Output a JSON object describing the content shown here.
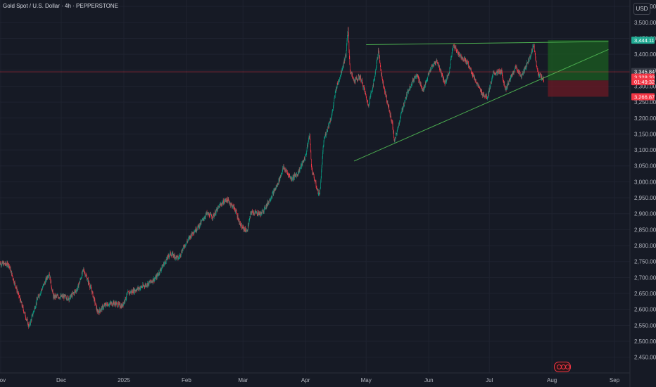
{
  "header": {
    "title": "Gold Spot / U.S. Dollar · 4h · PEPPERSTONE",
    "currency_button": "USD"
  },
  "colors": {
    "background": "#161a25",
    "grid": "#1f2330",
    "up": "#089981",
    "down": "#f23645",
    "trendline": "#4caf50",
    "profit_zone": "#1b5e20",
    "loss_zone": "#6b1a24",
    "price_line": "#f23645"
  },
  "chart_data": {
    "type": "candlestick",
    "title": "Gold Spot / U.S. Dollar · 4h · PEPPERSTONE",
    "x_axis": {
      "tick_labels": [
        "Nov",
        "Dec",
        "2025",
        "Feb",
        "Mar",
        "Apr",
        "May",
        "Jun",
        "Jul",
        "Aug",
        "Sep"
      ],
      "tick_dates": [
        "2024-11-01",
        "2024-12-01",
        "2025-01-01",
        "2025-02-01",
        "2025-03-01",
        "2025-04-01",
        "2025-05-01",
        "2025-06-01",
        "2025-07-01",
        "2025-08-01",
        "2025-09-01"
      ]
    },
    "y_axis": {
      "range": [
        2450,
        3560
      ],
      "tick_labels": [
        "2,450.00",
        "2,500.00",
        "2,550.00",
        "2,600.00",
        "2,650.00",
        "2,700.00",
        "2,750.00",
        "2,800.00",
        "2,850.00",
        "2,900.00",
        "2,950.00",
        "3,000.00",
        "3,050.00",
        "3,100.00",
        "3,150.00",
        "3,200.00",
        "3,250.00",
        "3,300.00",
        "3,350.00",
        "3,400.00",
        "3,450.00",
        "3,500.00",
        "3,550.00"
      ],
      "tick_values": [
        2450,
        2500,
        2550,
        2600,
        2650,
        2700,
        2750,
        2800,
        2850,
        2900,
        2950,
        3000,
        3050,
        3100,
        3150,
        3200,
        3250,
        3300,
        3350,
        3400,
        3450,
        3500,
        3550
      ]
    },
    "price_path": [
      {
        "date": "2024-10-31",
        "price": 2745
      },
      {
        "date": "2024-11-05",
        "price": 2740
      },
      {
        "date": "2024-11-08",
        "price": 2680
      },
      {
        "date": "2024-11-14",
        "price": 2565
      },
      {
        "date": "2024-11-15",
        "price": 2545
      },
      {
        "date": "2024-11-19",
        "price": 2630
      },
      {
        "date": "2024-11-25",
        "price": 2715
      },
      {
        "date": "2024-11-27",
        "price": 2640
      },
      {
        "date": "2024-12-02",
        "price": 2640
      },
      {
        "date": "2024-12-05",
        "price": 2635
      },
      {
        "date": "2024-12-09",
        "price": 2665
      },
      {
        "date": "2024-12-12",
        "price": 2725
      },
      {
        "date": "2024-12-16",
        "price": 2660
      },
      {
        "date": "2024-12-19",
        "price": 2590
      },
      {
        "date": "2024-12-23",
        "price": 2615
      },
      {
        "date": "2024-12-27",
        "price": 2620
      },
      {
        "date": "2024-12-31",
        "price": 2610
      },
      {
        "date": "2025-01-03",
        "price": 2650
      },
      {
        "date": "2025-01-08",
        "price": 2665
      },
      {
        "date": "2025-01-13",
        "price": 2680
      },
      {
        "date": "2025-01-17",
        "price": 2700
      },
      {
        "date": "2025-01-21",
        "price": 2745
      },
      {
        "date": "2025-01-24",
        "price": 2775
      },
      {
        "date": "2025-01-28",
        "price": 2760
      },
      {
        "date": "2025-01-31",
        "price": 2800
      },
      {
        "date": "2025-02-04",
        "price": 2840
      },
      {
        "date": "2025-02-07",
        "price": 2860
      },
      {
        "date": "2025-02-11",
        "price": 2900
      },
      {
        "date": "2025-02-14",
        "price": 2890
      },
      {
        "date": "2025-02-18",
        "price": 2930
      },
      {
        "date": "2025-02-21",
        "price": 2945
      },
      {
        "date": "2025-02-25",
        "price": 2915
      },
      {
        "date": "2025-02-28",
        "price": 2860
      },
      {
        "date": "2025-03-03",
        "price": 2845
      },
      {
        "date": "2025-03-05",
        "price": 2905
      },
      {
        "date": "2025-03-10",
        "price": 2900
      },
      {
        "date": "2025-03-13",
        "price": 2930
      },
      {
        "date": "2025-03-18",
        "price": 2990
      },
      {
        "date": "2025-03-21",
        "price": 3045
      },
      {
        "date": "2025-03-25",
        "price": 3010
      },
      {
        "date": "2025-03-28",
        "price": 3025
      },
      {
        "date": "2025-04-01",
        "price": 3080
      },
      {
        "date": "2025-04-03",
        "price": 3150
      },
      {
        "date": "2025-04-04",
        "price": 3040
      },
      {
        "date": "2025-04-07",
        "price": 2970
      },
      {
        "date": "2025-04-08",
        "price": 2960
      },
      {
        "date": "2025-04-10",
        "price": 3130
      },
      {
        "date": "2025-04-14",
        "price": 3210
      },
      {
        "date": "2025-04-16",
        "price": 3290
      },
      {
        "date": "2025-04-18",
        "price": 3330
      },
      {
        "date": "2025-04-21",
        "price": 3400
      },
      {
        "date": "2025-04-22",
        "price": 3480
      },
      {
        "date": "2025-04-23",
        "price": 3350
      },
      {
        "date": "2025-04-25",
        "price": 3315
      },
      {
        "date": "2025-04-28",
        "price": 3330
      },
      {
        "date": "2025-04-30",
        "price": 3290
      },
      {
        "date": "2025-05-02",
        "price": 3240
      },
      {
        "date": "2025-05-05",
        "price": 3320
      },
      {
        "date": "2025-05-07",
        "price": 3410
      },
      {
        "date": "2025-05-09",
        "price": 3320
      },
      {
        "date": "2025-05-12",
        "price": 3235
      },
      {
        "date": "2025-05-14",
        "price": 3180
      },
      {
        "date": "2025-05-15",
        "price": 3125
      },
      {
        "date": "2025-05-19",
        "price": 3230
      },
      {
        "date": "2025-05-22",
        "price": 3290
      },
      {
        "date": "2025-05-26",
        "price": 3340
      },
      {
        "date": "2025-05-29",
        "price": 3285
      },
      {
        "date": "2025-06-02",
        "price": 3355
      },
      {
        "date": "2025-06-05",
        "price": 3380
      },
      {
        "date": "2025-06-09",
        "price": 3310
      },
      {
        "date": "2025-06-11",
        "price": 3340
      },
      {
        "date": "2025-06-13",
        "price": 3430
      },
      {
        "date": "2025-06-16",
        "price": 3400
      },
      {
        "date": "2025-06-20",
        "price": 3375
      },
      {
        "date": "2025-06-24",
        "price": 3320
      },
      {
        "date": "2025-06-27",
        "price": 3280
      },
      {
        "date": "2025-06-30",
        "price": 3265
      },
      {
        "date": "2025-07-03",
        "price": 3340
      },
      {
        "date": "2025-07-07",
        "price": 3345
      },
      {
        "date": "2025-07-09",
        "price": 3290
      },
      {
        "date": "2025-07-14",
        "price": 3360
      },
      {
        "date": "2025-07-17",
        "price": 3330
      },
      {
        "date": "2025-07-21",
        "price": 3390
      },
      {
        "date": "2025-07-23",
        "price": 3430
      },
      {
        "date": "2025-07-25",
        "price": 3340
      },
      {
        "date": "2025-07-28",
        "price": 3318
      }
    ],
    "drawings": {
      "rising_trendline": [
        {
          "date": "2025-04-25",
          "price": 3065
        },
        {
          "date": "2025-08-29",
          "price": 3415
        }
      ],
      "resistance_line": [
        {
          "date": "2025-05-01",
          "price": 3430
        },
        {
          "date": "2025-08-29",
          "price": 3440
        }
      ],
      "horizontal_price_line": 3345,
      "position": {
        "start_date": "2025-07-30",
        "end_date": "2025-08-29",
        "entry": 3318,
        "target": 3444.11,
        "stop": 3266.87
      }
    },
    "price_labels": [
      {
        "label": "3,444.11",
        "value": 3444.11,
        "color": "#22ab94"
      },
      {
        "label": "3,345.84",
        "value": 3345.84,
        "color": "#363a45"
      },
      {
        "label": "3,328.33",
        "value": 3328.33,
        "color": "#f23645"
      },
      {
        "label": "01:49:32",
        "value": 3314,
        "color": "#f23645"
      },
      {
        "label": "3,266.87",
        "value": 3266.87,
        "color": "#f23645"
      }
    ]
  }
}
